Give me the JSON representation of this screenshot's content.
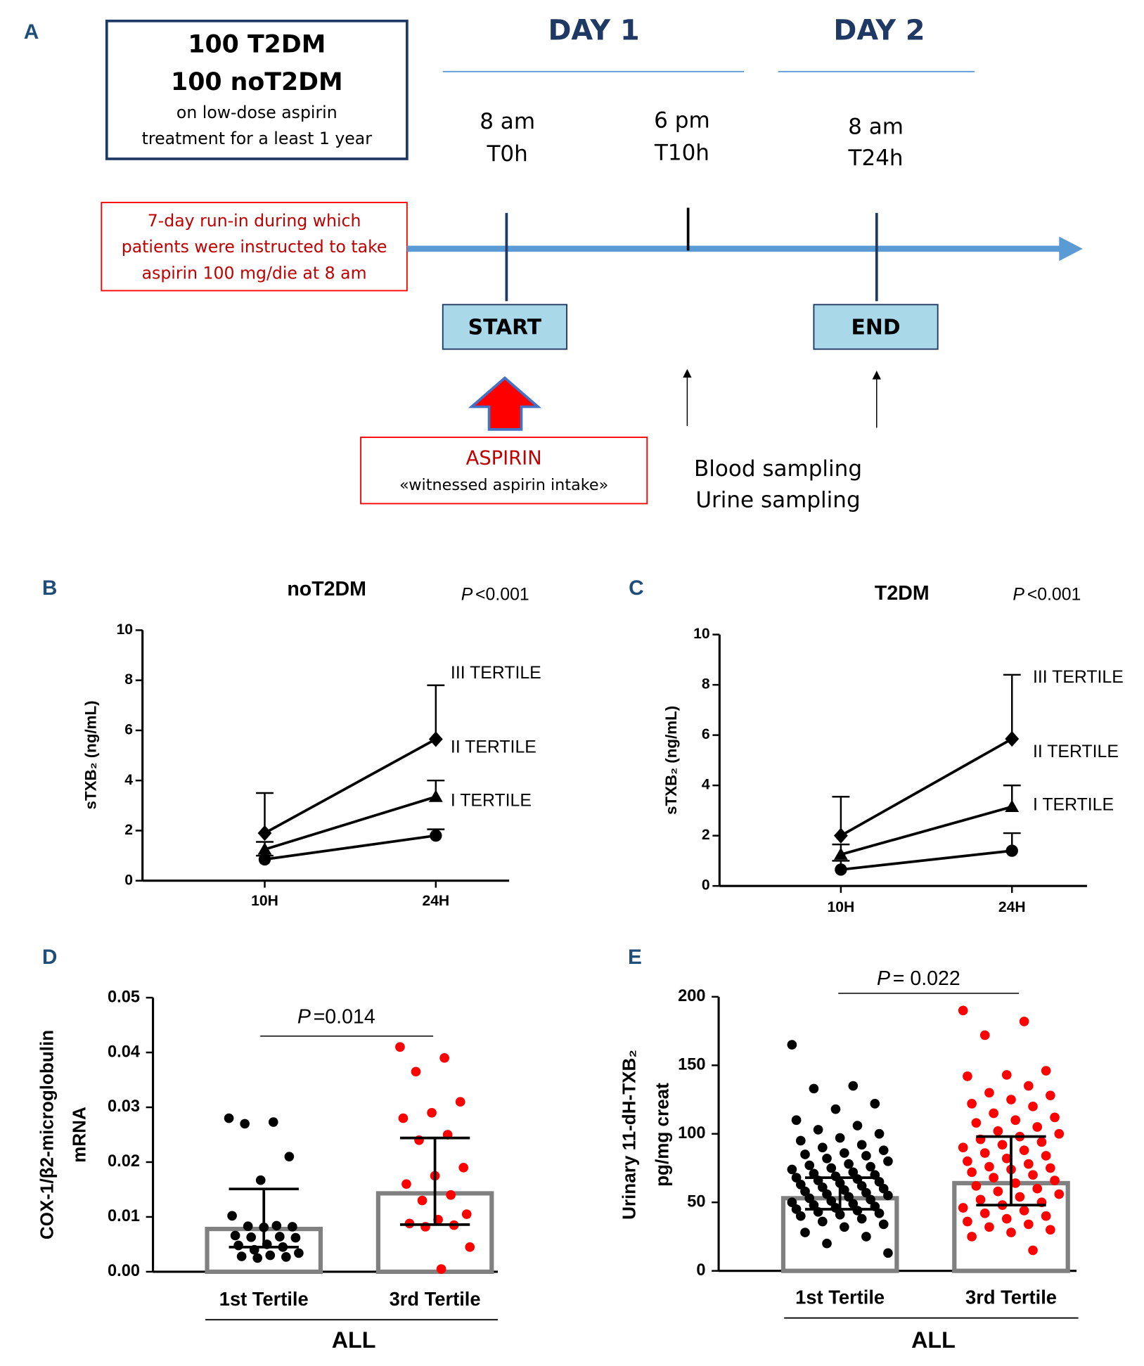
{
  "diagram": {
    "panel": "A",
    "cohort": [
      "100 T2DM",
      "100 noT2DM"
    ],
    "cohort_note": [
      "on low-dose aspirin",
      "treatment for a least 1 year"
    ],
    "days": [
      "DAY 1",
      "DAY 2"
    ],
    "timepoints": [
      {
        "time": "8 am",
        "label": "T0h"
      },
      {
        "time": "6 pm",
        "label": "T10h"
      },
      {
        "time": "8 am",
        "label": "T24h"
      }
    ],
    "run_in": [
      "7-day run-in during which",
      "patients were instructed to take",
      "aspirin 100 mg/die at 8 am"
    ],
    "start": "START",
    "end": "END",
    "aspirin": "ASPIRIN",
    "aspirin_note": "«witnessed aspirin intake»",
    "sampling": [
      "Blood sampling",
      "Urine sampling"
    ]
  },
  "chart_data": [
    {
      "type": "line",
      "panel": "B",
      "title": "noT2DM",
      "p_label": "P",
      "p_value": "<0.001",
      "ylabel": "sTXB₂ (ng/mL)",
      "categories": [
        "10H",
        "24H"
      ],
      "ylim": [
        0,
        10
      ],
      "yticks": [
        0,
        2,
        4,
        6,
        8,
        10
      ],
      "series": [
        {
          "name": "I TERTILE",
          "marker": "circle",
          "color": "#000000",
          "values": [
            0.85,
            1.8
          ],
          "errors": [
            0.15,
            0.25
          ]
        },
        {
          "name": "II TERTILE",
          "marker": "triangle",
          "color": "#000000",
          "values": [
            1.25,
            3.35
          ],
          "errors": [
            0.3,
            0.65
          ]
        },
        {
          "name": "III TERTILE",
          "marker": "diamond",
          "color": "#000000",
          "values": [
            1.9,
            5.65
          ],
          "errors": [
            1.6,
            2.15
          ]
        }
      ]
    },
    {
      "type": "line",
      "panel": "C",
      "title": "T2DM",
      "p_label": "P",
      "p_value": "<0.001",
      "ylabel": "sTXB₂ (ng/mL)",
      "categories": [
        "10H",
        "24H"
      ],
      "ylim": [
        0,
        10
      ],
      "yticks": [
        0,
        2,
        4,
        6,
        8,
        10
      ],
      "series": [
        {
          "name": "I TERTILE",
          "marker": "circle",
          "color": "#000000",
          "values": [
            0.65,
            1.4
          ],
          "errors": [
            0.35,
            0.7
          ]
        },
        {
          "name": "II TERTILE",
          "marker": "triangle",
          "color": "#000000",
          "values": [
            1.25,
            3.15
          ],
          "errors": [
            0.4,
            0.85
          ]
        },
        {
          "name": "III TERTILE",
          "marker": "diamond",
          "color": "#000000",
          "values": [
            2.0,
            5.85
          ],
          "errors": [
            1.55,
            2.55
          ]
        }
      ]
    },
    {
      "type": "bar",
      "panel": "D",
      "p_label": "P",
      "p_value": "=0.014",
      "ylabel": [
        "COX-1/β2-microglobulin",
        "mRNA"
      ],
      "categories": [
        "1st Tertile",
        "3rd Tertile"
      ],
      "group_label": "ALL",
      "ylim": [
        0,
        0.05
      ],
      "yticks": [
        {
          "value": 0,
          "label": "0.00"
        },
        0.01,
        0.02,
        0.03,
        0.04,
        0.05
      ],
      "values": [
        0.0078,
        0.0143
      ],
      "lower": [
        0.0045,
        0.0086
      ],
      "upper": [
        0.0151,
        0.0244
      ],
      "bar_color": "#808080",
      "point_colors": [
        "#000000",
        "#ff0000"
      ],
      "points": [
        [
          0.028,
          0.0273,
          0.027,
          0.021,
          0.0167,
          0.0102,
          0.0084,
          0.0083,
          0.0082,
          0.0081,
          0.0066,
          0.0064,
          0.0063,
          0.0062,
          0.005,
          0.0048,
          0.0045,
          0.004,
          0.0034,
          0.003,
          0.0028,
          0.0027,
          0.0025
        ],
        [
          0.041,
          0.039,
          0.0365,
          0.031,
          0.029,
          0.028,
          0.025,
          0.024,
          0.019,
          0.0175,
          0.016,
          0.014,
          0.013,
          0.0105,
          0.0095,
          0.0088,
          0.0085,
          0.0082,
          0.0045,
          0.0005
        ]
      ]
    },
    {
      "type": "bar",
      "panel": "E",
      "p_label": "P",
      "p_value": "= 0.022",
      "ylabel": [
        "Urinary 11-dH-TXB₂",
        "pg/mg creat"
      ],
      "categories": [
        "1st Tertile",
        "3rd Tertile"
      ],
      "group_label": "ALL",
      "ylim": [
        0,
        200
      ],
      "yticks": [
        0,
        50,
        100,
        150,
        200
      ],
      "values": [
        53,
        64
      ],
      "lower": [
        45,
        48
      ],
      "upper": [
        68,
        98
      ],
      "bar_color": "#808080",
      "point_colors": [
        "#000000",
        "#ff0000"
      ],
      "points": [
        [
          165,
          135,
          133,
          122,
          118,
          110,
          106,
          103,
          100,
          97,
          95,
          92,
          90,
          88,
          86,
          85,
          84,
          82,
          80,
          78,
          77,
          76,
          75,
          74,
          72,
          71,
          70,
          69,
          68,
          67,
          66,
          65,
          64,
          63,
          62,
          61,
          60,
          59,
          58,
          57,
          56,
          55,
          54,
          53,
          52,
          51,
          50,
          49,
          48,
          47,
          46,
          45,
          44,
          43,
          42,
          41,
          40,
          38,
          36,
          34,
          32,
          28,
          25,
          20,
          13
        ],
        [
          190,
          182,
          172,
          146,
          143,
          142,
          135,
          130,
          128,
          125,
          122,
          120,
          115,
          112,
          110,
          108,
          105,
          102,
          100,
          98,
          96,
          94,
          92,
          90,
          88,
          86,
          84,
          82,
          80,
          78,
          76,
          75,
          74,
          72,
          70,
          68,
          66,
          64,
          62,
          60,
          58,
          56,
          54,
          52,
          50,
          48,
          46,
          44,
          42,
          40,
          38,
          36,
          34,
          32,
          30,
          28,
          25,
          15
        ]
      ]
    }
  ]
}
